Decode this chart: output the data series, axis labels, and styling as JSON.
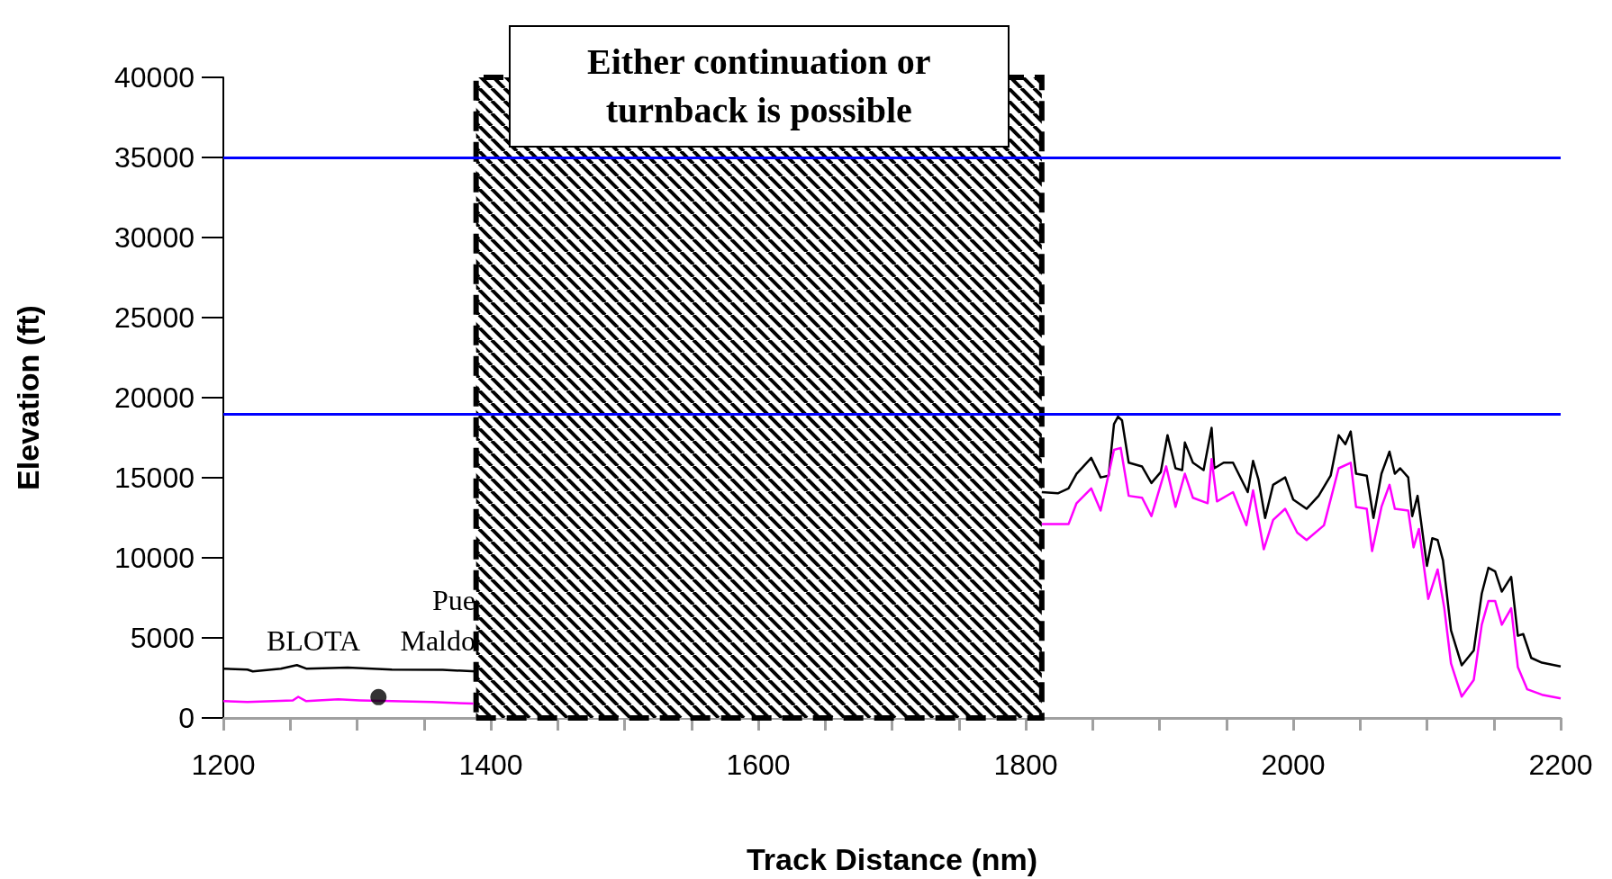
{
  "chart_data": {
    "type": "line",
    "xlabel": "Track Distance (nm)",
    "ylabel": "Elevation (ft)",
    "xlim": [
      1200,
      2200
    ],
    "xticks": [
      1200,
      {
        "value": 1250,
        "label": null
      },
      {
        "value": 1300,
        "label": null
      },
      {
        "value": 1350,
        "label": null
      },
      1400,
      {
        "value": 1450,
        "label": null
      },
      {
        "value": 1500,
        "label": null
      },
      {
        "value": 1550,
        "label": null
      },
      1600,
      {
        "value": 1650,
        "label": null
      },
      {
        "value": 1700,
        "label": null
      },
      {
        "value": 1750,
        "label": null
      },
      1800,
      {
        "value": 1850,
        "label": null
      },
      {
        "value": 1900,
        "label": null
      },
      {
        "value": 1950,
        "label": null
      },
      2000,
      {
        "value": 2050,
        "label": null
      },
      {
        "value": 2100,
        "label": null
      },
      {
        "value": 2150,
        "label": null
      },
      2200
    ],
    "ylim": [
      0,
      40000
    ],
    "yticks": [
      0,
      5000,
      10000,
      15000,
      20000,
      25000,
      30000,
      35000,
      40000
    ],
    "grid": false,
    "marker": "none",
    "line_style": "solid",
    "series": [
      {
        "color": "#000000",
        "x": [
          1200,
          1218,
          1222,
          1243,
          1255,
          1262,
          1293,
          1326,
          1364,
          1389,
          1600,
          1812,
          1824,
          1832,
          1838,
          1843,
          1849,
          1856,
          1862,
          1866,
          1869,
          1872,
          1877,
          1887,
          1894,
          1901,
          1906,
          1912,
          1917,
          1919,
          1925,
          1933,
          1939,
          1941,
          1948,
          1955,
          1966,
          1970,
          1974,
          1979,
          1985,
          1994,
          2000,
          2010,
          2019,
          2028,
          2034,
          2039,
          2043,
          2047,
          2055,
          2060,
          2066,
          2072,
          2076,
          2080,
          2086,
          2089,
          2093,
          2100,
          2104,
          2108,
          2112,
          2118,
          2126,
          2135,
          2141,
          2146,
          2151,
          2156,
          2163,
          2168,
          2172,
          2178,
          2186,
          2200
        ],
        "values": [
          3080,
          3020,
          2910,
          3080,
          3300,
          3080,
          3140,
          3020,
          3000,
          2910,
          null,
          14100,
          14030,
          14330,
          15250,
          15700,
          16240,
          15020,
          15130,
          18350,
          18810,
          18580,
          15940,
          15700,
          14670,
          15360,
          17660,
          15590,
          15480,
          17200,
          15940,
          15480,
          18120,
          15590,
          15940,
          15940,
          14100,
          16050,
          14900,
          12490,
          14560,
          15020,
          13640,
          13060,
          13870,
          15130,
          17660,
          17090,
          17890,
          15250,
          15130,
          12490,
          15250,
          16630,
          15250,
          15590,
          15020,
          12600,
          13870,
          9500,
          11220,
          11110,
          9840,
          5470,
          3290,
          4210,
          7770,
          9380,
          9150,
          7890,
          8810,
          5130,
          5240,
          3750,
          3450,
          3220
        ]
      },
      {
        "color": "#ff00ff",
        "x": [
          1200,
          1218,
          1252,
          1256,
          1262,
          1286,
          1302,
          1326,
          1356,
          1368,
          1387,
          1600,
          1812,
          1832,
          1838,
          1849,
          1856,
          1866,
          1871,
          1877,
          1887,
          1894,
          1905,
          1912,
          1919,
          1925,
          1936,
          1939,
          1943,
          1955,
          1965,
          1970,
          1978,
          1985,
          1994,
          2003,
          2010,
          2023,
          2034,
          2043,
          2047,
          2055,
          2059,
          2066,
          2072,
          2076,
          2086,
          2090,
          2094,
          2101,
          2108,
          2113,
          2118,
          2126,
          2135,
          2141,
          2146,
          2151,
          2156,
          2163,
          2168,
          2175,
          2186,
          2200
        ],
        "values": [
          1050,
          1000,
          1100,
          1320,
          1050,
          1160,
          1100,
          1050,
          1000,
          950,
          900,
          null,
          12100,
          12100,
          13410,
          14330,
          12950,
          16740,
          16860,
          13870,
          13750,
          12600,
          15710,
          13180,
          15250,
          13750,
          13410,
          16170,
          13520,
          14100,
          12030,
          14210,
          10530,
          12370,
          13060,
          11570,
          11110,
          12030,
          15590,
          15940,
          13180,
          13060,
          10420,
          13180,
          14560,
          13060,
          12950,
          10650,
          11800,
          7430,
          9270,
          6850,
          3400,
          1330,
          2370,
          5820,
          7310,
          7310,
          5820,
          6850,
          3170,
          1790,
          1450,
          1220
        ]
      },
      {
        "type": "scatter",
        "marker": "circle",
        "color": "#000000",
        "x": [
          1316
        ],
        "values": [
          1300
        ]
      }
    ],
    "ref_lines": [
      {
        "axis": "y",
        "value": 35000,
        "color": "#0000ff"
      },
      {
        "axis": "y",
        "value": 19000,
        "color": "#0000ff"
      }
    ],
    "bands": [
      {
        "axis": "x",
        "from": 1389,
        "to": 1812,
        "label": "Either continuation or turnback is possible",
        "color": "#000000"
      }
    ],
    "annotations": [
      "BLOTA",
      "Pue",
      "Maldo"
    ]
  }
}
